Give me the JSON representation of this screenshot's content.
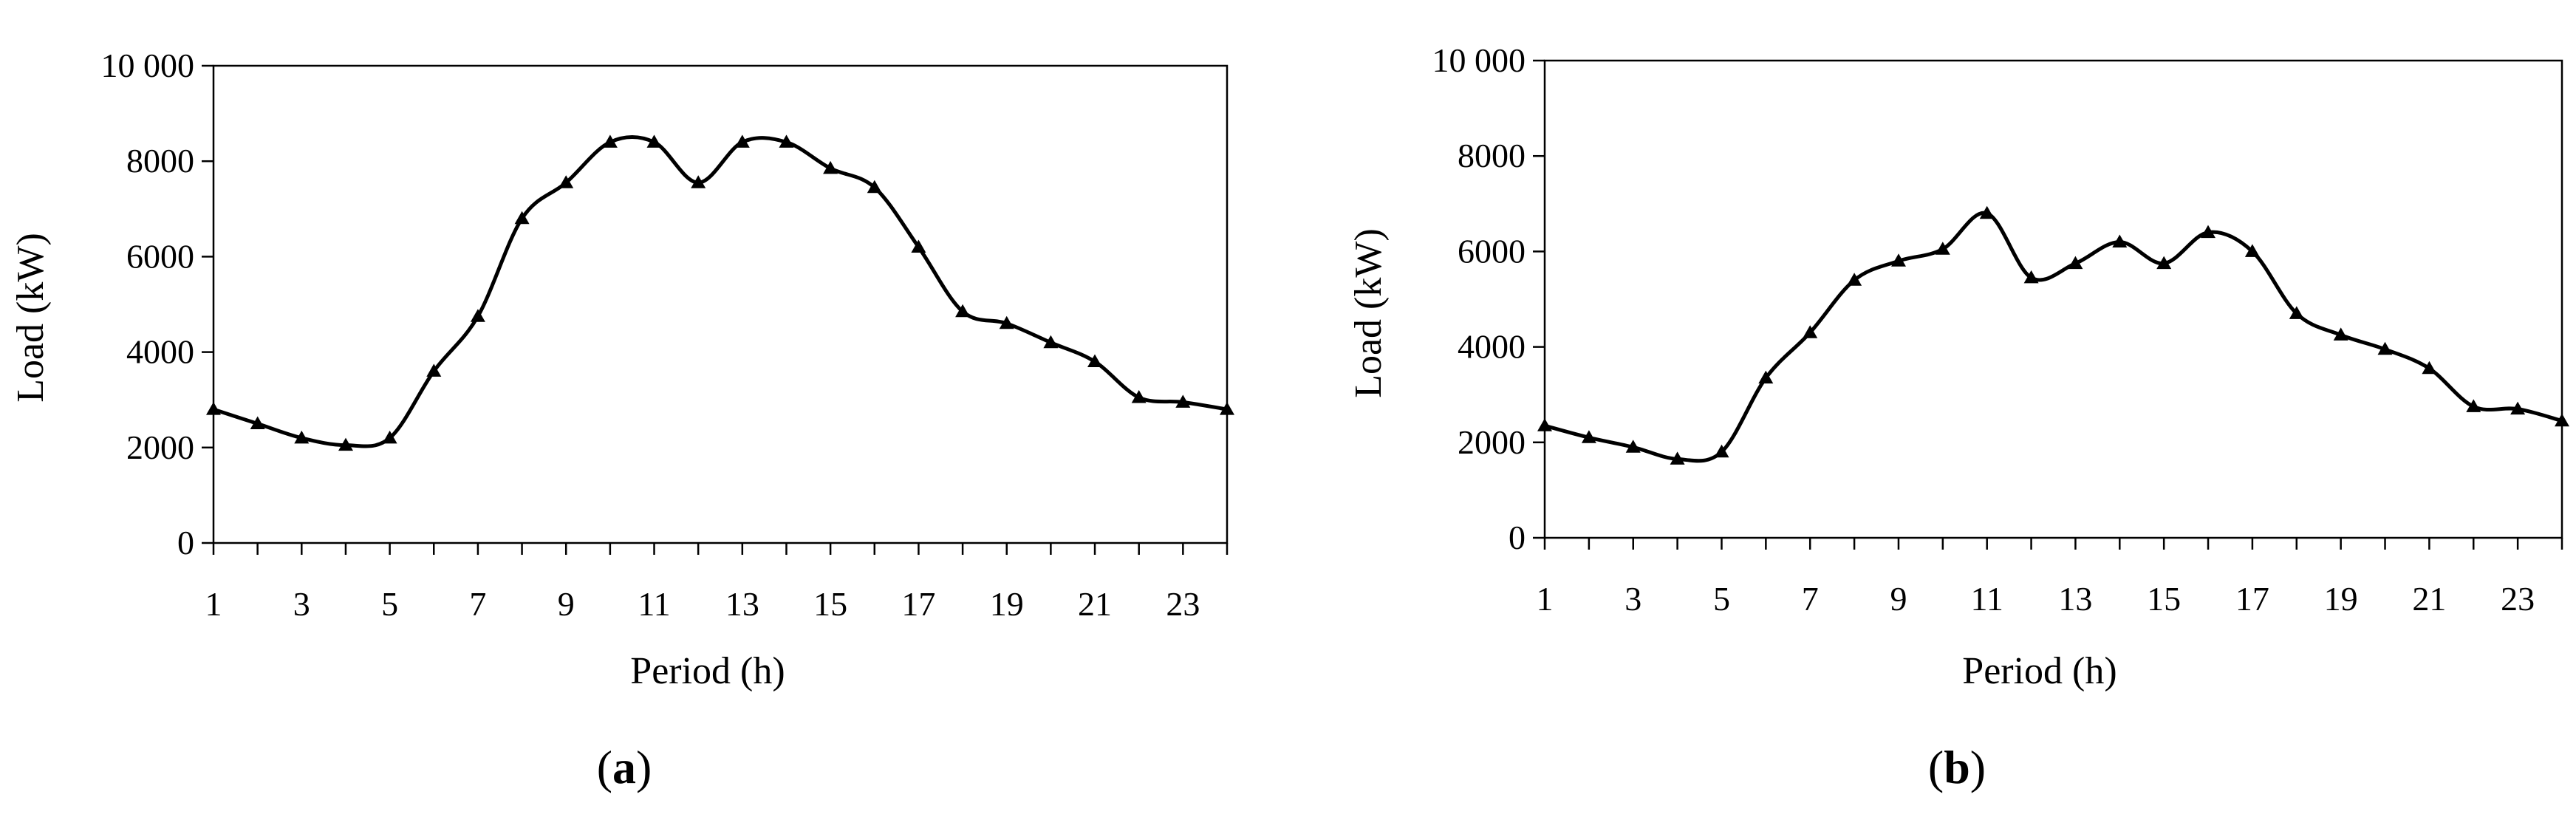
{
  "chart_data": [
    {
      "type": "line",
      "panel_label": "a",
      "xlabel": "Period (h)",
      "ylabel": "Load (kW)",
      "xlim": [
        1,
        24
      ],
      "ylim": [
        0,
        10000
      ],
      "xticks": [
        "1",
        "3",
        "5",
        "7",
        "9",
        "11",
        "13",
        "15",
        "17",
        "19",
        "21",
        "23"
      ],
      "yticks": [
        "0",
        "2000",
        "4000",
        "6000",
        "8000",
        "10 000"
      ],
      "ytick_values": [
        0,
        2000,
        4000,
        6000,
        8000,
        10000
      ],
      "xtick_values": [
        1,
        3,
        5,
        7,
        9,
        11,
        13,
        15,
        17,
        19,
        21,
        23
      ],
      "grid": false,
      "marker": "triangle",
      "series": [
        {
          "x": [
            1,
            2,
            3,
            4,
            5,
            6,
            7,
            8,
            9,
            10,
            11,
            12,
            13,
            14,
            15,
            16,
            17,
            18,
            19,
            20,
            21,
            22,
            23,
            24
          ],
          "values": [
            2800,
            2500,
            2200,
            2050,
            2200,
            3600,
            4750,
            6800,
            7550,
            8400,
            8400,
            7550,
            8400,
            8400,
            7850,
            7450,
            6200,
            4850,
            4600,
            4200,
            3800,
            3050,
            2950,
            2800
          ]
        }
      ]
    },
    {
      "type": "line",
      "panel_label": "b",
      "xlabel": "Period (h)",
      "ylabel": "Load (kW)",
      "xlim": [
        1,
        24
      ],
      "ylim": [
        0,
        10000
      ],
      "xticks": [
        "1",
        "3",
        "5",
        "7",
        "9",
        "11",
        "13",
        "15",
        "17",
        "19",
        "21",
        "23"
      ],
      "yticks": [
        "0",
        "2000",
        "4000",
        "6000",
        "8000",
        "10 000"
      ],
      "ytick_values": [
        0,
        2000,
        4000,
        6000,
        8000,
        10000
      ],
      "xtick_values": [
        1,
        3,
        5,
        7,
        9,
        11,
        13,
        15,
        17,
        19,
        21,
        23
      ],
      "grid": false,
      "marker": "triangle",
      "series": [
        {
          "x": [
            1,
            2,
            3,
            4,
            5,
            6,
            7,
            8,
            9,
            10,
            11,
            12,
            13,
            14,
            15,
            16,
            17,
            18,
            19,
            20,
            21,
            22,
            23,
            24
          ],
          "values": [
            2350,
            2100,
            1900,
            1650,
            1800,
            3350,
            4300,
            5400,
            5800,
            6050,
            6800,
            5450,
            5750,
            6200,
            5750,
            6400,
            6000,
            4700,
            4250,
            3950,
            3550,
            2750,
            2700,
            2450
          ]
        }
      ]
    }
  ]
}
